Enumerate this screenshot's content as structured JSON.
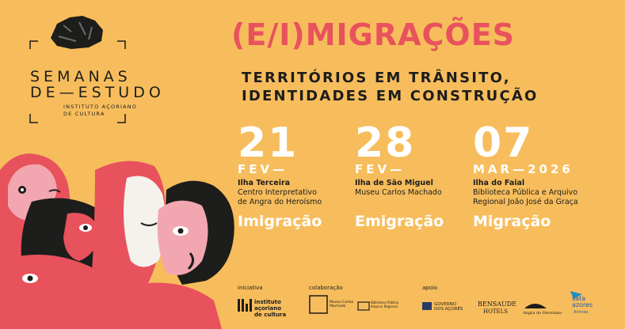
{
  "logo": {
    "line1": "SEMANAS",
    "line2": "DE—ESTUDO",
    "org": [
      "INSTITUTO AÇORIANO",
      "DE CULTURA"
    ]
  },
  "title": "(E/I)MIGRAÇÕES",
  "subtitle": [
    "TERRITÓRIOS EM TRÂNSITO,",
    "IDENTIDADES EM CONSTRUÇÃO"
  ],
  "sessions": [
    {
      "day": "21",
      "month": "FEV—",
      "island": "Ilha Terceira",
      "venue": [
        "Centro Interpretativo",
        "de Angra do Heroísmo"
      ],
      "theme": "Imigração"
    },
    {
      "day": "28",
      "month": "FEV—",
      "island": "Ilha de São Miguel",
      "venue": [
        "Museu Carlos Machado"
      ],
      "theme": "Emigração"
    },
    {
      "day": "07",
      "month": "MAR—2026",
      "island": "Ilha do Faial",
      "venue": [
        "Biblioteca Pública e Arquivo",
        "Regional João José da Graça"
      ],
      "theme": "Migração"
    }
  ],
  "footer": {
    "iniciativa": {
      "label": "iniciativa",
      "logo": [
        "instituto",
        "açoriano",
        "de cultura"
      ]
    },
    "colaboracao": {
      "label": "colaboração",
      "logos": [
        "Museu Carlos Machado",
        "Biblioteca Pública Arquivo Regional"
      ]
    },
    "apoio": {
      "label": "apoio",
      "logos": [
        "GOVERNO DOS AÇORES",
        "BENSAUDE",
        "HOTELS",
        "Angra do Heroísmo",
        "sata",
        "azores",
        "Airlines"
      ]
    }
  }
}
